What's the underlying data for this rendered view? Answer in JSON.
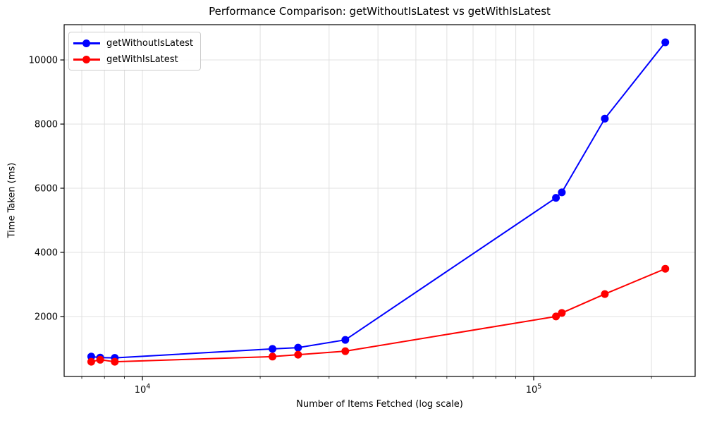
{
  "chart_data": {
    "type": "line",
    "title": "Performance Comparison: getWithoutIsLatest vs getWithIsLatest",
    "xlabel": "Number of Items Fetched (log scale)",
    "ylabel": "Time Taken (ms)",
    "xscale": "log",
    "grid": true,
    "legend_position": "upper left",
    "xlim": [
      6310,
      258600
    ],
    "ylim": [
      130,
      11100
    ],
    "yticks": [
      2000,
      4000,
      6000,
      8000,
      10000
    ],
    "xticks": [
      {
        "value": 10000,
        "base": "10",
        "exp": "4"
      },
      {
        "value": 100000,
        "base": "10",
        "exp": "5"
      }
    ],
    "x": [
      7400,
      7800,
      8500,
      21500,
      25000,
      33000,
      114000,
      118000,
      152000,
      217000
    ],
    "series": [
      {
        "name": "getWithoutIsLatest",
        "color": "#0000ff",
        "values": [
          750,
          720,
          710,
          990,
          1030,
          1270,
          5700,
          5870,
          8170,
          10550
        ]
      },
      {
        "name": "getWithIsLatest",
        "color": "#ff0000",
        "values": [
          590,
          650,
          590,
          750,
          810,
          920,
          2000,
          2110,
          2700,
          3490
        ]
      }
    ],
    "colors": {
      "grid": "#e0e0e0",
      "spine": "#000000",
      "text": "#000000",
      "background": "#ffffff"
    }
  }
}
